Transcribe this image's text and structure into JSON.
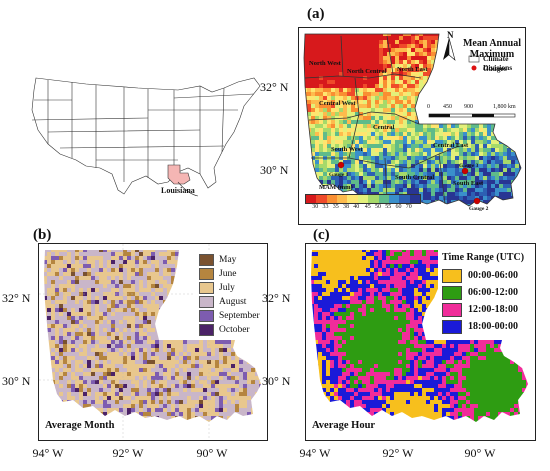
{
  "panels": {
    "a": {
      "label": "(a)",
      "title": "Mean Annual Maximum",
      "legend": {
        "climate_divisions": "Climate Divisions",
        "gauges": "Gauges"
      },
      "scale": {
        "ticks": [
          "0",
          "450",
          "900",
          "1,800 km"
        ]
      },
      "north_arrow": "N",
      "colorbar": {
        "title": "MAM (mm)",
        "ticks": [
          "30",
          "33",
          "35",
          "38",
          "40",
          "45",
          "50",
          "55",
          "60",
          "70"
        ],
        "colors": [
          "#d7191c",
          "#ef4a2a",
          "#f98e32",
          "#fdbb4d",
          "#fee56f",
          "#e3f07a",
          "#a6d96a",
          "#5fbb8a",
          "#3a8fcb",
          "#2c5fb3",
          "#283593"
        ]
      },
      "divisions": [
        "North West",
        "North Central",
        "North East",
        "Central West",
        "Central",
        "South West",
        "Central East",
        "South Central",
        "South East"
      ],
      "gauge_labels": [
        "Gauge 1",
        "Gauge 2",
        "Gauge 3"
      ]
    },
    "b": {
      "label": "(b)",
      "bottom_title": "Average Month",
      "legend": [
        {
          "label": "May",
          "color": "#7a5230"
        },
        {
          "label": "June",
          "color": "#b5853f"
        },
        {
          "label": "July",
          "color": "#e8c78e"
        },
        {
          "label": "August",
          "color": "#c9b6c9"
        },
        {
          "label": "September",
          "color": "#7d5cb0"
        },
        {
          "label": "October",
          "color": "#4b2267"
        }
      ]
    },
    "c": {
      "label": "(c)",
      "bottom_title": "Average Hour",
      "legend_title": "Time Range (UTC)",
      "legend": [
        {
          "label": "00:00-06:00",
          "color": "#f7bf1d"
        },
        {
          "label": "06:00-12:00",
          "color": "#2e9c12"
        },
        {
          "label": "12:00-18:00",
          "color": "#f02c9a"
        },
        {
          "label": "18:00-00:00",
          "color": "#1a1ad8"
        }
      ]
    }
  },
  "usa_map": {
    "highlight_label": "Louisiana",
    "highlight_color": "#f5b6b4"
  },
  "axes": {
    "lat_top": [
      "32° N",
      "30° N"
    ],
    "lat_bottom": [
      "32° N",
      "30° N"
    ],
    "lon_bottom": [
      "94° W",
      "92° W",
      "90° W"
    ]
  }
}
